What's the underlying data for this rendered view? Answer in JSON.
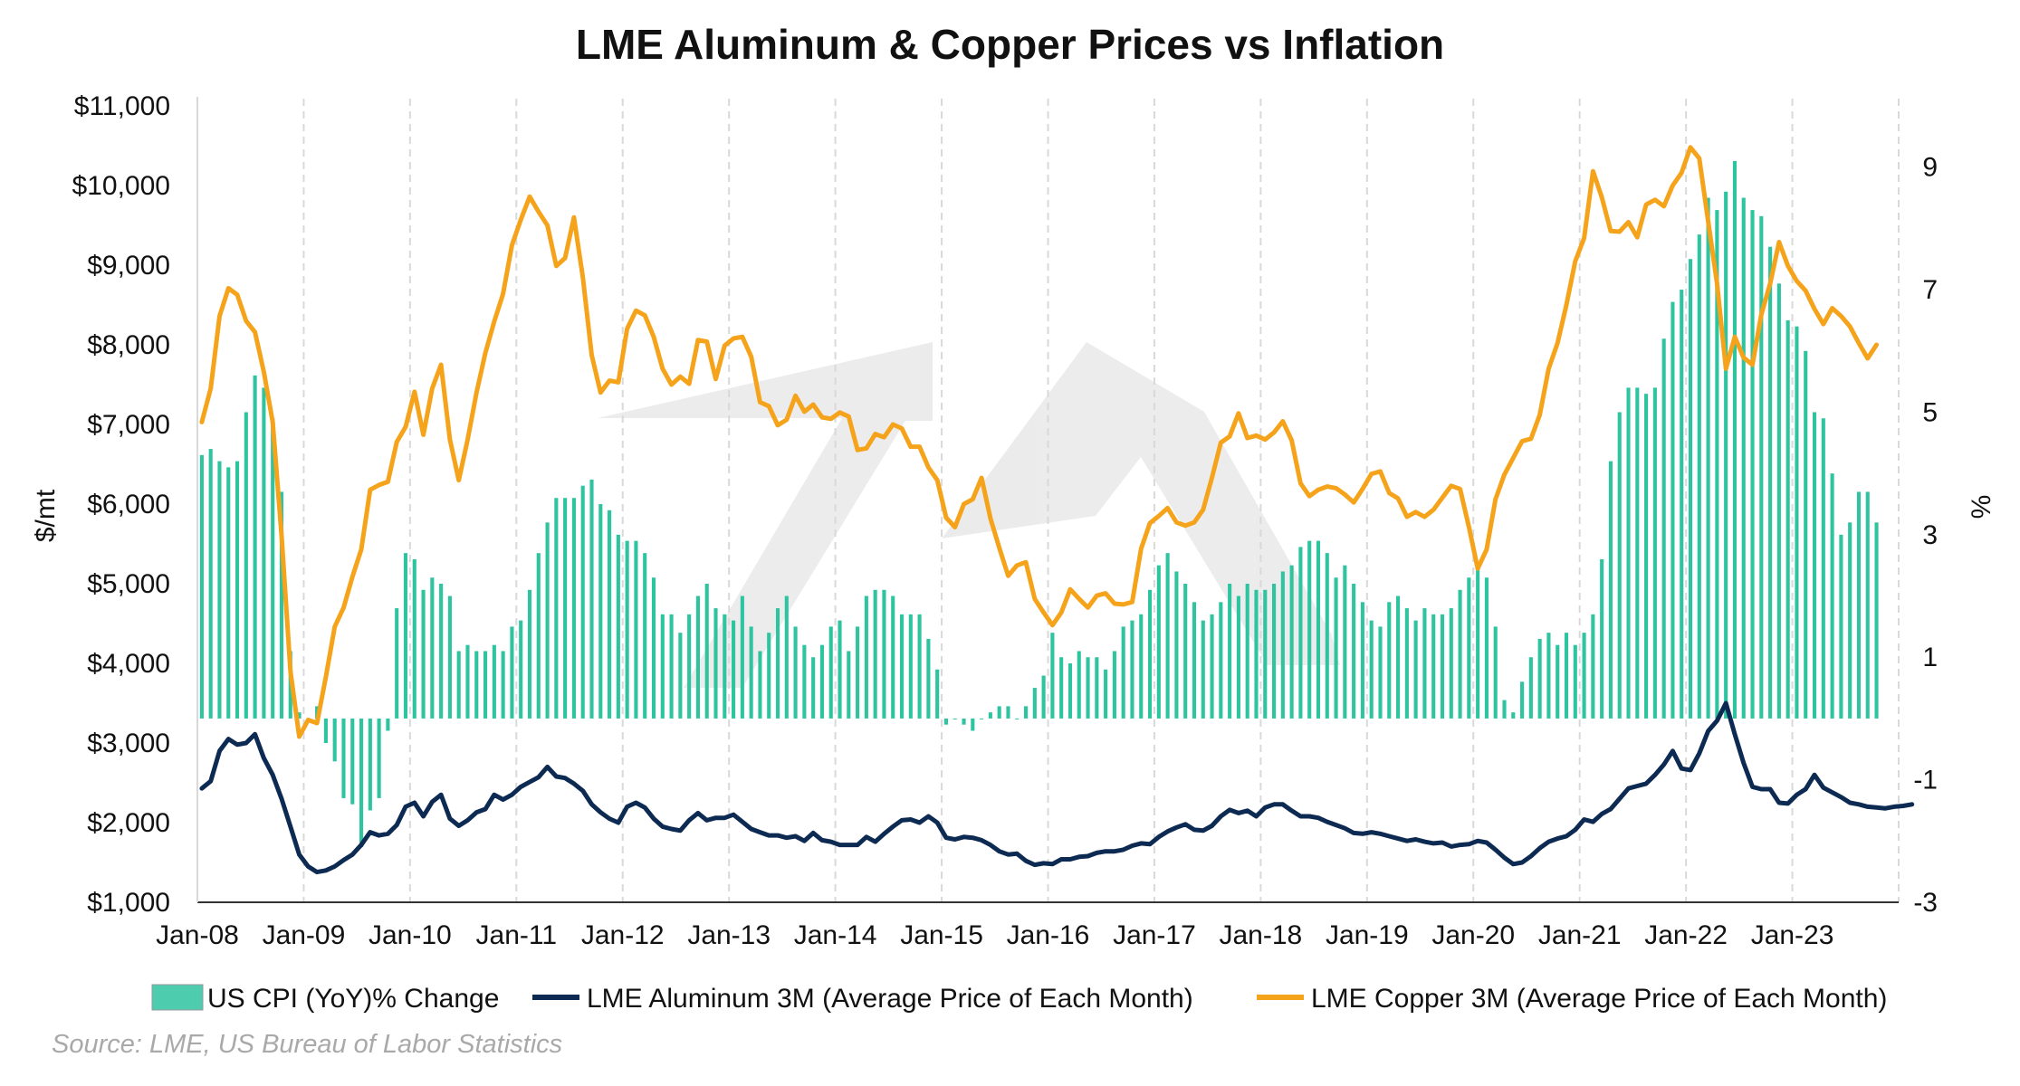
{
  "chart_data": {
    "type": "bar+line",
    "title": "LME Aluminum & Copper Prices vs Inflation",
    "ylabel_left": "$/mt",
    "ylabel_right": "%",
    "ylim_left": [
      1000,
      11000
    ],
    "ylim_right": [
      -3,
      10
    ],
    "yticks_left": [
      "$1,000",
      "$2,000",
      "$3,000",
      "$4,000",
      "$5,000",
      "$6,000",
      "$7,000",
      "$8,000",
      "$9,000",
      "$10,000",
      "$11,000"
    ],
    "yticks_right": [
      "-3",
      "-1",
      "1",
      "3",
      "5",
      "7",
      "9"
    ],
    "x_tick_labels": [
      "Jan-08",
      "Jan-09",
      "Jan-10",
      "Jan-11",
      "Jan-12",
      "Jan-13",
      "Jan-14",
      "Jan-15",
      "Jan-16",
      "Jan-17",
      "Jan-18",
      "Jan-19",
      "Jan-20",
      "Jan-21",
      "Jan-22",
      "Jan-23"
    ],
    "x_start": "2008-01",
    "grid": "vertical dashed",
    "legend_position": "bottom",
    "series": [
      {
        "name": "US CPI (YoY)% Change",
        "axis": "right",
        "kind": "bar",
        "color": "#2ec4a0",
        "values": [
          4.3,
          4.4,
          4.2,
          4.1,
          4.2,
          5.0,
          5.6,
          5.4,
          4.9,
          3.7,
          1.1,
          0.1,
          0.0,
          0.2,
          -0.4,
          -0.7,
          -1.3,
          -1.4,
          -2.1,
          -1.5,
          -1.3,
          -0.2,
          1.8,
          2.7,
          2.6,
          2.1,
          2.3,
          2.2,
          2.0,
          1.1,
          1.2,
          1.1,
          1.1,
          1.2,
          1.1,
          1.5,
          1.6,
          2.1,
          2.7,
          3.2,
          3.6,
          3.6,
          3.6,
          3.8,
          3.9,
          3.5,
          3.4,
          3.0,
          2.9,
          2.9,
          2.7,
          2.3,
          1.7,
          1.7,
          1.4,
          1.7,
          2.0,
          2.2,
          1.8,
          1.7,
          1.6,
          2.0,
          1.5,
          1.1,
          1.4,
          1.8,
          2.0,
          1.5,
          1.2,
          1.0,
          1.2,
          1.5,
          1.6,
          1.1,
          1.5,
          2.0,
          2.1,
          2.1,
          2.0,
          1.7,
          1.7,
          1.7,
          1.3,
          0.8,
          -0.1,
          0.0,
          -0.1,
          -0.2,
          0.0,
          0.1,
          0.2,
          0.2,
          0.0,
          0.2,
          0.5,
          0.7,
          1.4,
          1.0,
          0.9,
          1.1,
          1.0,
          1.0,
          0.8,
          1.1,
          1.5,
          1.6,
          1.7,
          2.1,
          2.5,
          2.7,
          2.4,
          2.2,
          1.9,
          1.6,
          1.7,
          1.9,
          2.2,
          2.0,
          2.2,
          2.1,
          2.1,
          2.2,
          2.4,
          2.5,
          2.8,
          2.9,
          2.9,
          2.7,
          2.3,
          2.5,
          2.2,
          1.9,
          1.6,
          1.5,
          1.9,
          2.0,
          1.8,
          1.6,
          1.8,
          1.7,
          1.7,
          1.8,
          2.1,
          2.3,
          2.5,
          2.3,
          1.5,
          0.3,
          0.1,
          0.6,
          1.0,
          1.3,
          1.4,
          1.2,
          1.4,
          1.2,
          1.4,
          1.7,
          2.6,
          4.2,
          5.0,
          5.4,
          5.4,
          5.3,
          5.4,
          6.2,
          6.8,
          7.0,
          7.5,
          7.9,
          8.5,
          8.3,
          8.6,
          9.1,
          8.5,
          8.3,
          8.2,
          7.7,
          7.1,
          6.5,
          6.4,
          6.0,
          5.0,
          4.9,
          4.0,
          3.0,
          3.2,
          3.7,
          3.7,
          3.2
        ],
        "colors_hint": "teal bars"
      },
      {
        "name": "LME Aluminum 3M (Average Price of Each Month)",
        "axis": "left",
        "kind": "line",
        "color": "#0d2a52",
        "values": [
          2430,
          2520,
          2900,
          3050,
          2980,
          3000,
          3110,
          2810,
          2600,
          2300,
          1950,
          1600,
          1450,
          1380,
          1400,
          1450,
          1530,
          1600,
          1720,
          1880,
          1840,
          1860,
          1970,
          2200,
          2250,
          2080,
          2260,
          2350,
          2050,
          1960,
          2030,
          2130,
          2170,
          2350,
          2290,
          2350,
          2450,
          2510,
          2570,
          2700,
          2580,
          2560,
          2490,
          2400,
          2230,
          2130,
          2050,
          2000,
          2200,
          2250,
          2190,
          2050,
          1950,
          1920,
          1900,
          2030,
          2120,
          2030,
          2060,
          2060,
          2100,
          2010,
          1920,
          1880,
          1840,
          1840,
          1810,
          1830,
          1770,
          1870,
          1780,
          1760,
          1720,
          1720,
          1720,
          1820,
          1760,
          1860,
          1950,
          2030,
          2040,
          2000,
          2080,
          2000,
          1810,
          1790,
          1820,
          1810,
          1780,
          1720,
          1640,
          1600,
          1610,
          1520,
          1470,
          1490,
          1480,
          1540,
          1540,
          1570,
          1580,
          1620,
          1640,
          1640,
          1660,
          1710,
          1740,
          1730,
          1820,
          1890,
          1940,
          1980,
          1910,
          1900,
          1960,
          2080,
          2160,
          2120,
          2150,
          2080,
          2190,
          2230,
          2230,
          2150,
          2080,
          2080,
          2060,
          2010,
          1970,
          1930,
          1870,
          1860,
          1880,
          1860,
          1830,
          1800,
          1770,
          1790,
          1760,
          1740,
          1750,
          1700,
          1720,
          1730,
          1770,
          1750,
          1660,
          1560,
          1480,
          1500,
          1580,
          1680,
          1760,
          1800,
          1830,
          1910,
          2040,
          2010,
          2110,
          2170,
          2300,
          2430,
          2460,
          2490,
          2600,
          2730,
          2900,
          2680,
          2660,
          2870,
          3150,
          3280,
          3500,
          3110,
          2750,
          2450,
          2420,
          2420,
          2250,
          2240,
          2350,
          2420,
          2600,
          2440,
          2380,
          2320,
          2250,
          2230,
          2200,
          2190,
          2180,
          2200,
          2210,
          2230
        ],
        "colors_hint": "navy line"
      },
      {
        "name": "LME Copper 3M (Average Price of Each Month)",
        "axis": "left",
        "kind": "line",
        "color": "#f5a31a",
        "values": [
          7030,
          7450,
          8360,
          8710,
          8630,
          8300,
          8160,
          7660,
          7030,
          5600,
          3900,
          3080,
          3290,
          3250,
          3830,
          4460,
          4700,
          5090,
          5430,
          6180,
          6240,
          6280,
          6780,
          6970,
          7410,
          6870,
          7450,
          7750,
          6810,
          6300,
          6810,
          7400,
          7900,
          8290,
          8640,
          9250,
          9570,
          9860,
          9670,
          9500,
          8990,
          9090,
          9600,
          8850,
          7870,
          7400,
          7550,
          7530,
          8200,
          8430,
          8370,
          8100,
          7700,
          7500,
          7600,
          7510,
          8060,
          8040,
          7570,
          7990,
          8080,
          8100,
          7850,
          7280,
          7230,
          6990,
          7060,
          7360,
          7160,
          7250,
          7090,
          7070,
          7150,
          7100,
          6680,
          6700,
          6880,
          6840,
          7000,
          6950,
          6720,
          6720,
          6460,
          6300,
          5830,
          5710,
          6000,
          6060,
          6330,
          5820,
          5450,
          5100,
          5230,
          5270,
          4810,
          4640,
          4480,
          4640,
          4930,
          4810,
          4700,
          4850,
          4880,
          4750,
          4740,
          4770,
          5440,
          5760,
          5850,
          5950,
          5770,
          5730,
          5770,
          5930,
          6330,
          6770,
          6850,
          7140,
          6830,
          6860,
          6810,
          6900,
          7040,
          6800,
          6260,
          6100,
          6180,
          6220,
          6200,
          6120,
          6020,
          6190,
          6380,
          6410,
          6140,
          6070,
          5840,
          5900,
          5840,
          5930,
          6080,
          6230,
          6190,
          5710,
          5190,
          5430,
          6060,
          6370,
          6580,
          6790,
          6820,
          7120,
          7700,
          8020,
          8500,
          9050,
          9340,
          10180,
          9850,
          9430,
          9420,
          9540,
          9350,
          9760,
          9820,
          9740,
          10000,
          10160,
          10480,
          10340,
          9550,
          8770,
          7700,
          8100,
          7840,
          7750,
          8380,
          8770,
          9290,
          8990,
          8800,
          8680,
          8450,
          8260,
          8460,
          8360,
          8230,
          8020,
          7830,
          8000
        ],
        "colors_hint": "orange line"
      }
    ]
  },
  "source_note": "Source: LME, US Bureau of Labor Statistics",
  "watermark_icon": "logo-watermark"
}
